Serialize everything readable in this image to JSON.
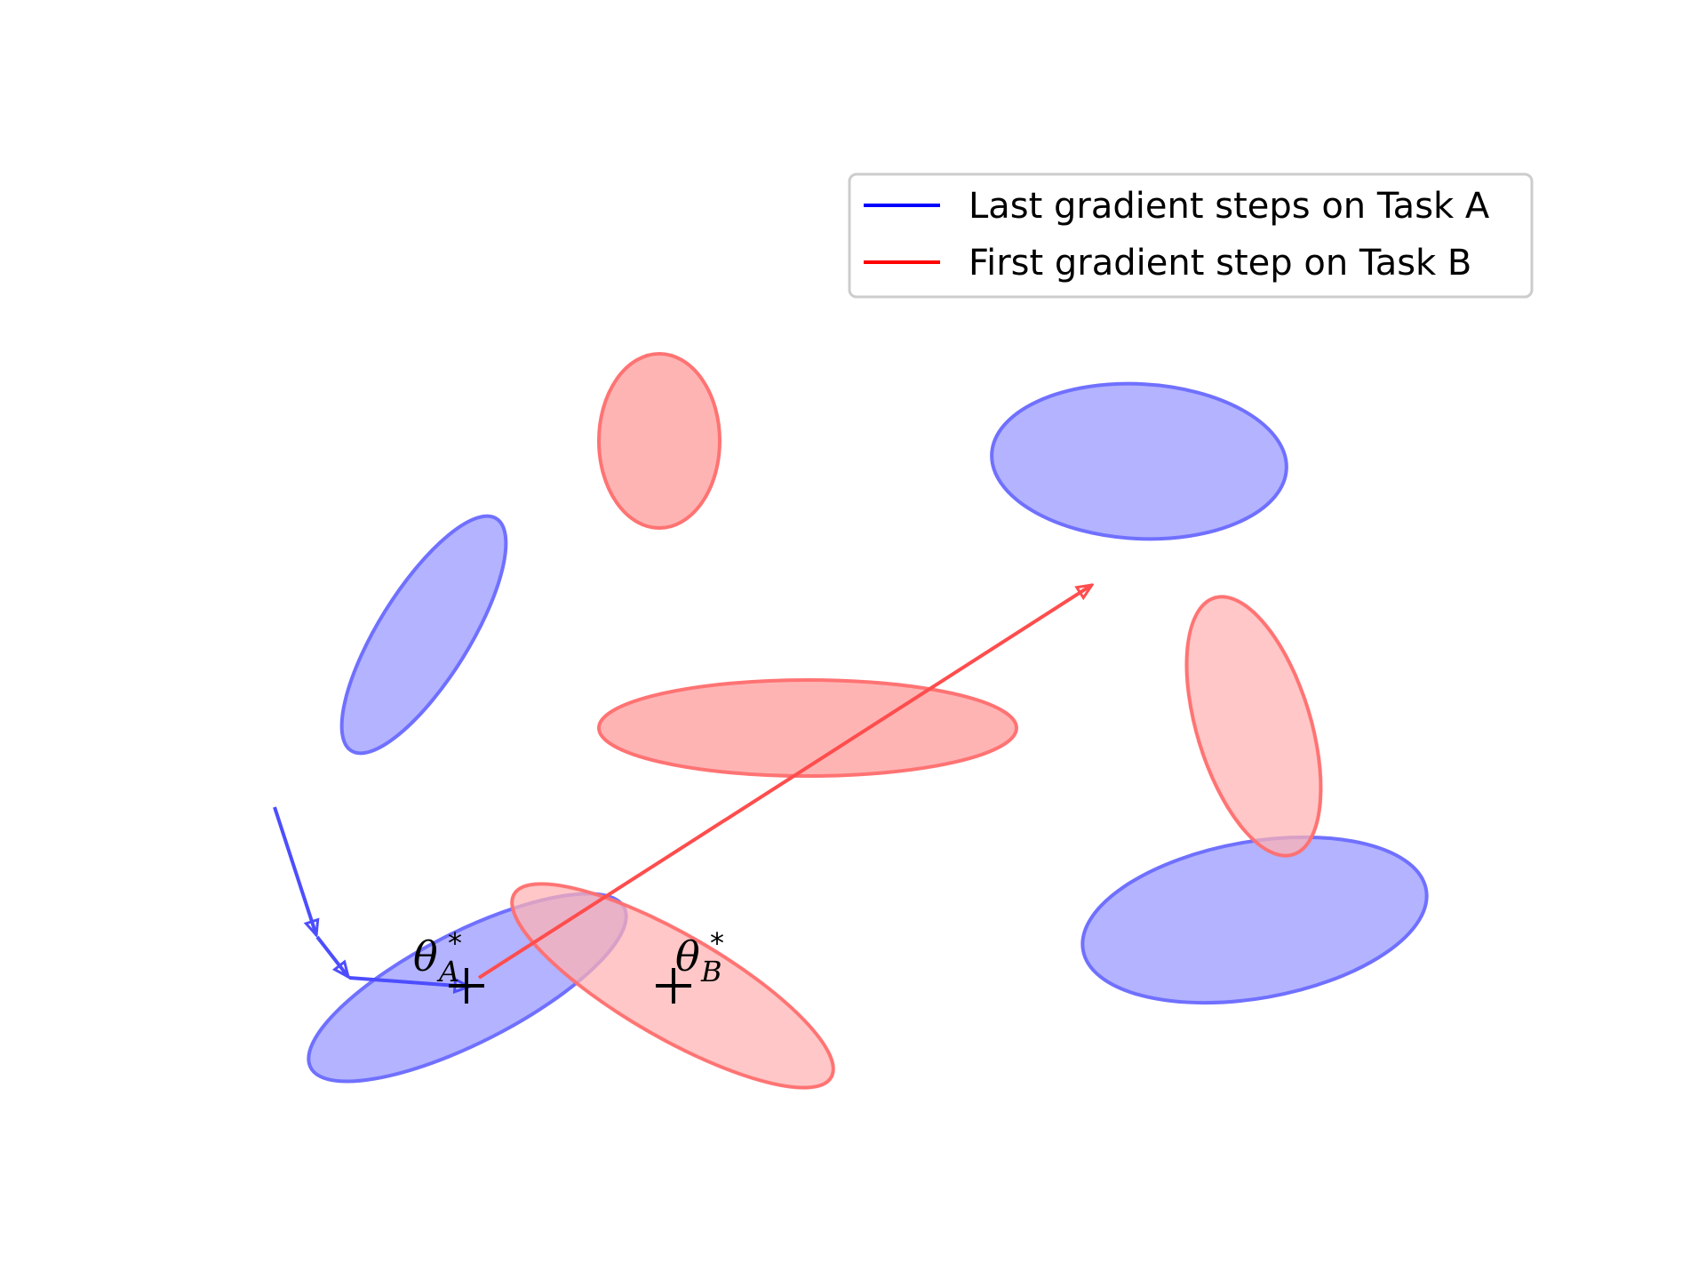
{
  "legend": {
    "items": [
      {
        "label": "Last gradient steps on Task A",
        "color": "#0000ff"
      },
      {
        "label": "First gradient step on Task B",
        "color": "#ff0000"
      }
    ]
  },
  "optima": {
    "a": {
      "symbol": "θ",
      "subscript": "A",
      "superscript": "*"
    },
    "b": {
      "symbol": "θ",
      "subscript": "B",
      "superscript": "*"
    }
  },
  "colors": {
    "task_a_fill": "#b3b3ff",
    "task_a_stroke": "#7070ff",
    "task_b_fill": "#ffb3b3",
    "task_b_stroke": "#ff7070",
    "task_a_arrow": "#4d4dff",
    "task_b_arrow": "#ff4d4d"
  }
}
